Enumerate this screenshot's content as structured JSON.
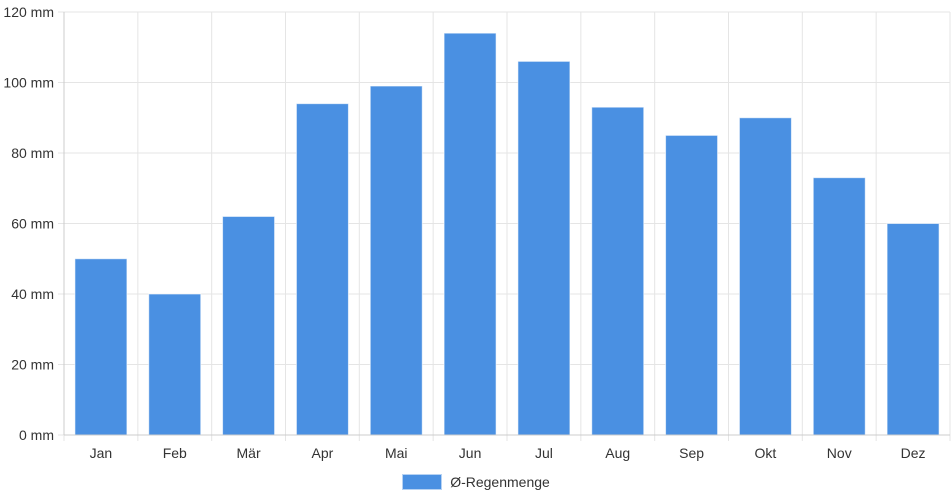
{
  "chart_data": {
    "type": "bar",
    "categories": [
      "Jan",
      "Feb",
      "Mär",
      "Apr",
      "Mai",
      "Jun",
      "Jul",
      "Aug",
      "Sep",
      "Okt",
      "Nov",
      "Dez"
    ],
    "series": [
      {
        "name": "Ø-Regenmenge",
        "values": [
          50,
          40,
          62,
          94,
          99,
          114,
          106,
          93,
          85,
          90,
          73,
          60
        ]
      }
    ],
    "y_tick_labels": [
      "0 mm",
      "20 mm",
      "40 mm",
      "60 mm",
      "80 mm",
      "100 mm",
      "120 mm"
    ],
    "ylim": [
      0,
      120
    ],
    "grid": true,
    "legend_position": "bottom",
    "colors": {
      "bar": "#4a90e2",
      "grid": "#e5e5e5",
      "axis": "#cccccc",
      "text": "#333333"
    }
  }
}
